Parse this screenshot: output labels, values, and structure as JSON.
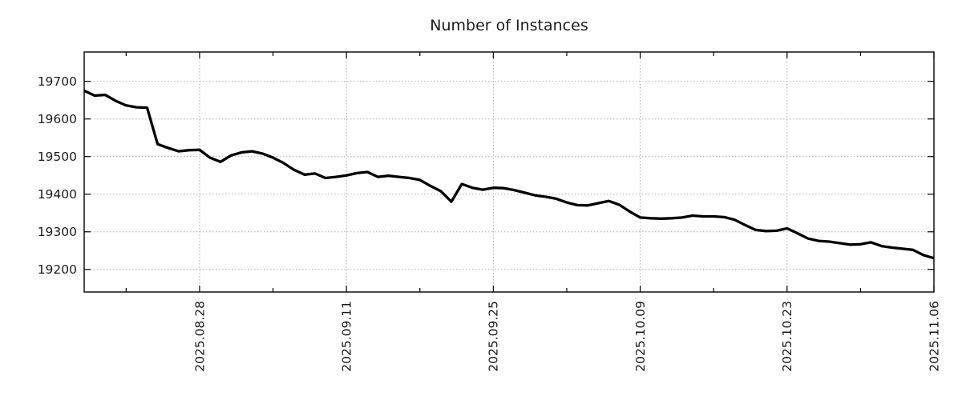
{
  "title": "Number of Instances",
  "chart_data": {
    "type": "line",
    "title": "Number of Instances",
    "xlabel": "",
    "ylabel": "",
    "grid": true,
    "legend": "none",
    "line_color": "#000000",
    "line_width": 3.3,
    "grid_color": "#b0b0b0",
    "spine_color": "#000000",
    "text_color": "#1a1a1a",
    "ylim": [
      19140,
      19778
    ],
    "yticks": [
      19200,
      19300,
      19400,
      19500,
      19600,
      19700
    ],
    "ytick_labels": [
      "19200",
      "19300",
      "19400",
      "19500",
      "19600",
      "19700"
    ],
    "xtick_labels": [
      "2025.08.28",
      "2025.09.11",
      "2025.09.25",
      "2025.10.09",
      "2025.10.23",
      "2025.11.06"
    ],
    "xtick_minor": [
      "2025.08.21",
      "2025.09.04",
      "2025.09.18",
      "2025.10.02",
      "2025.10.16",
      "2025.10.30"
    ],
    "x": [
      "2025.08.17",
      "2025.08.18",
      "2025.08.19",
      "2025.08.20",
      "2025.08.21",
      "2025.08.22",
      "2025.08.23",
      "2025.08.24",
      "2025.08.25",
      "2025.08.26",
      "2025.08.27",
      "2025.08.28",
      "2025.08.29",
      "2025.08.30",
      "2025.08.31",
      "2025.09.01",
      "2025.09.02",
      "2025.09.03",
      "2025.09.04",
      "2025.09.05",
      "2025.09.06",
      "2025.09.07",
      "2025.09.08",
      "2025.09.09",
      "2025.09.10",
      "2025.09.11",
      "2025.09.12",
      "2025.09.13",
      "2025.09.14",
      "2025.09.15",
      "2025.09.16",
      "2025.09.17",
      "2025.09.18",
      "2025.09.19",
      "2025.09.20",
      "2025.09.21",
      "2025.09.22",
      "2025.09.23",
      "2025.09.24",
      "2025.09.25",
      "2025.09.26",
      "2025.09.27",
      "2025.09.28",
      "2025.09.29",
      "2025.09.30",
      "2025.10.01",
      "2025.10.02",
      "2025.10.03",
      "2025.10.04",
      "2025.10.05",
      "2025.10.06",
      "2025.10.07",
      "2025.10.08",
      "2025.10.09",
      "2025.10.10",
      "2025.10.11",
      "2025.10.12",
      "2025.10.13",
      "2025.10.14",
      "2025.10.15",
      "2025.10.16",
      "2025.10.17",
      "2025.10.18",
      "2025.10.19",
      "2025.10.20",
      "2025.10.21",
      "2025.10.22",
      "2025.10.23",
      "2025.10.24",
      "2025.10.25",
      "2025.10.26",
      "2025.10.27",
      "2025.10.28",
      "2025.10.29",
      "2025.10.30",
      "2025.10.31",
      "2025.11.01",
      "2025.11.02",
      "2025.11.03",
      "2025.11.04",
      "2025.11.05",
      "2025.11.06"
    ],
    "values": [
      19675,
      19662,
      19664,
      19648,
      19636,
      19631,
      19630,
      19533,
      19523,
      19514,
      19517,
      19518,
      19497,
      19486,
      19503,
      19511,
      19514,
      19508,
      19497,
      19483,
      19465,
      19452,
      19455,
      19443,
      19446,
      19450,
      19456,
      19459,
      19446,
      19449,
      19446,
      19443,
      19438,
      19422,
      19408,
      19380,
      19427,
      19417,
      19412,
      19417,
      19416,
      19411,
      19404,
      19397,
      19393,
      19388,
      19378,
      19371,
      19370,
      19376,
      19382,
      19372,
      19354,
      19338,
      19336,
      19335,
      19336,
      19338,
      19343,
      19341,
      19341,
      19339,
      19332,
      19318,
      19305,
      19302,
      19303,
      19309,
      19296,
      19282,
      19276,
      19274,
      19270,
      19266,
      19267,
      19272,
      19262,
      19258,
      19255,
      19252,
      19238,
      19230
    ]
  }
}
